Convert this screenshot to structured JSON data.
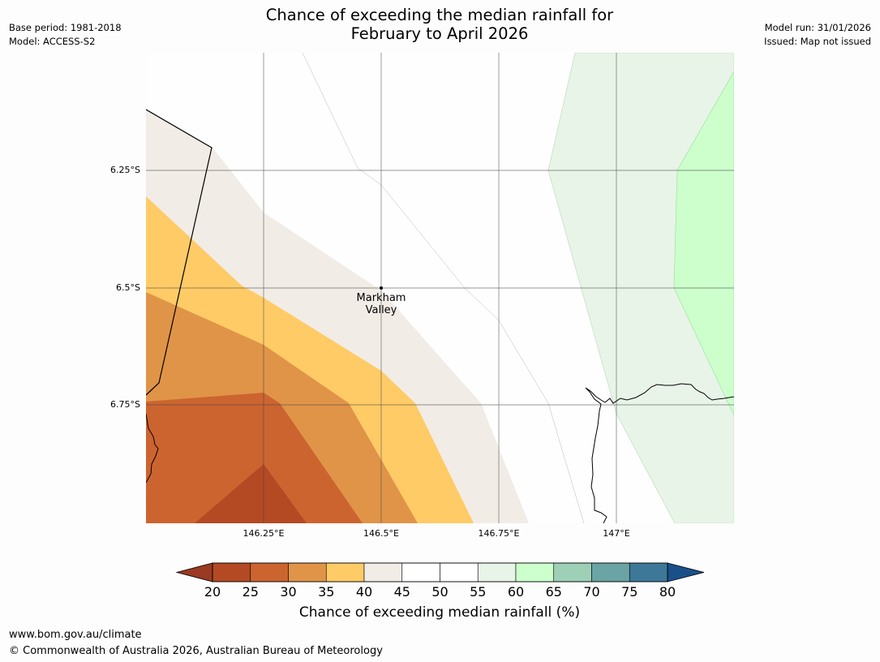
{
  "header": {
    "title_line1": "Chance of exceeding the median rainfall for",
    "title_line2": "February to April 2026",
    "base_period": "Base period: 1981-2018",
    "model": "Model: ACCESS-S2",
    "model_run": "Model run: 31/01/2026",
    "issued": "Issued: Map not issued"
  },
  "map": {
    "lat_labels": [
      "6.25°S",
      "6.5°S",
      "6.75°S"
    ],
    "lon_labels": [
      "146.25°E",
      "146.5°E",
      "146.75°E",
      "147°E"
    ],
    "place": {
      "line1": "Markham",
      "line2": "Valley"
    },
    "regions": [
      {
        "band": "20-25",
        "color": "#b34a24"
      },
      {
        "band": "25-30",
        "color": "#cc6430"
      },
      {
        "band": "30-35",
        "color": "#e09448"
      },
      {
        "band": "35-40",
        "color": "#ffcb66"
      },
      {
        "band": "40-45",
        "color": "#f1ece6"
      },
      {
        "band": "55-60",
        "color": "#e8f4e8"
      },
      {
        "band": "60-65",
        "color": "#ccffcc"
      }
    ]
  },
  "colorbar": {
    "title": "Chance of exceeding median rainfall (%)",
    "ticks": [
      "20",
      "25",
      "30",
      "35",
      "40",
      "45",
      "50",
      "55",
      "60",
      "65",
      "70",
      "75",
      "80"
    ],
    "under_color": "#9a3a22",
    "over_color": "#1a508a",
    "colors": [
      "#b34a24",
      "#cc6430",
      "#e09448",
      "#ffcb66",
      "#f1ece6",
      "#ffffff",
      "#ffffff",
      "#e8f4e8",
      "#ccffcc",
      "#9ed0b8",
      "#6ba4a4",
      "#3e7898"
    ]
  },
  "footer": {
    "url": "www.bom.gov.au/climate",
    "copyright": "© Commonwealth of Australia 2026, Australian Bureau of Meteorology"
  }
}
